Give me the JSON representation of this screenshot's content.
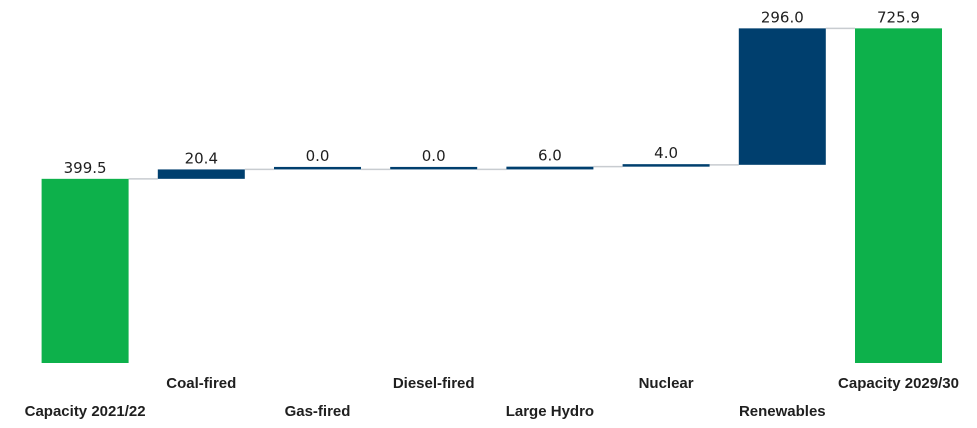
{
  "chart_data": {
    "type": "bar",
    "subtype": "waterfall",
    "categories": [
      "Capacity 2021/22",
      "Coal-fired",
      "Gas-fired",
      "Diesel-fired",
      "Large Hydro",
      "Nuclear",
      "Renewables",
      "Capacity 2029/30"
    ],
    "values": [
      399.5,
      20.4,
      0.0,
      0.0,
      6.0,
      4.0,
      296.0,
      725.9
    ],
    "value_labels": [
      "399.5",
      "20.4",
      "0.0",
      "0.0",
      "6.0",
      "4.0",
      "296.0",
      "725.9"
    ],
    "kinds": [
      "total",
      "delta",
      "delta",
      "delta",
      "delta",
      "delta",
      "delta",
      "total"
    ],
    "colors": {
      "total": "#0db14b",
      "delta": "#003f6e",
      "connector": "#c8ccd0"
    },
    "label_rows": [
      1,
      0,
      1,
      0,
      1,
      0,
      1,
      0
    ],
    "title": "",
    "xlabel": "",
    "ylabel": "",
    "grid": false,
    "legend": "none"
  }
}
